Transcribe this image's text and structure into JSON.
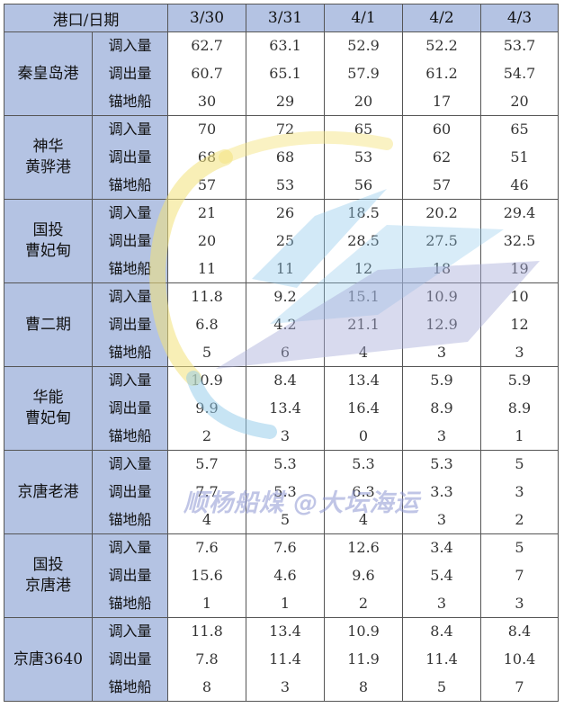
{
  "header": {
    "port_date_label": "港口/日期",
    "dates": [
      "3/30",
      "3/31",
      "4/1",
      "4/2",
      "4/3"
    ]
  },
  "metric_labels": [
    "调入量",
    "调出量",
    "锚地船"
  ],
  "ports": [
    {
      "name_lines": [
        "秦皇岛港"
      ],
      "rows": [
        [
          "62.7",
          "63.1",
          "52.9",
          "52.2",
          "53.7"
        ],
        [
          "60.7",
          "65.1",
          "57.9",
          "61.2",
          "54.7"
        ],
        [
          "30",
          "29",
          "20",
          "17",
          "20"
        ]
      ]
    },
    {
      "name_lines": [
        "神华",
        "黄骅港"
      ],
      "rows": [
        [
          "70",
          "72",
          "65",
          "60",
          "65"
        ],
        [
          "68",
          "68",
          "53",
          "62",
          "51"
        ],
        [
          "57",
          "53",
          "56",
          "57",
          "46"
        ]
      ]
    },
    {
      "name_lines": [
        "国投",
        "曹妃甸"
      ],
      "rows": [
        [
          "21",
          "26",
          "18.5",
          "20.2",
          "29.4"
        ],
        [
          "20",
          "25",
          "28.5",
          "27.5",
          "32.5"
        ],
        [
          "11",
          "11",
          "12",
          "18",
          "19"
        ]
      ]
    },
    {
      "name_lines": [
        "曹二期"
      ],
      "rows": [
        [
          "11.8",
          "9.2",
          "15.1",
          "10.9",
          "10"
        ],
        [
          "6.8",
          "4.2",
          "21.1",
          "12.9",
          "12"
        ],
        [
          "5",
          "6",
          "4",
          "3",
          "3"
        ]
      ]
    },
    {
      "name_lines": [
        "华能",
        "曹妃甸"
      ],
      "rows": [
        [
          "10.9",
          "8.4",
          "13.4",
          "5.9",
          "5.9"
        ],
        [
          "9.9",
          "13.4",
          "16.4",
          "8.9",
          "8.9"
        ],
        [
          "2",
          "3",
          "0",
          "3",
          "1"
        ]
      ]
    },
    {
      "name_lines": [
        "京唐老港"
      ],
      "rows": [
        [
          "5.7",
          "5.3",
          "5.3",
          "5.3",
          "5"
        ],
        [
          "7.7",
          "5.3",
          "6.3",
          "3.3",
          "3"
        ],
        [
          "4",
          "5",
          "4",
          "3",
          "2"
        ]
      ]
    },
    {
      "name_lines": [
        "国投",
        "京唐港"
      ],
      "rows": [
        [
          "7.6",
          "7.6",
          "12.6",
          "3.4",
          "5"
        ],
        [
          "15.6",
          "4.6",
          "9.6",
          "5.4",
          "7"
        ],
        [
          "1",
          "1",
          "2",
          "3",
          "3"
        ]
      ]
    },
    {
      "name_lines": [
        "京唐3640"
      ],
      "rows": [
        [
          "11.8",
          "13.4",
          "10.9",
          "8.4",
          "8.4"
        ],
        [
          "7.8",
          "11.4",
          "11.9",
          "11.4",
          "10.4"
        ],
        [
          "8",
          "3",
          "8",
          "5",
          "7"
        ]
      ]
    }
  ],
  "watermark": {
    "text": "顺杨船煤 @大坛海运",
    "colors": [
      "#f3e27a",
      "#8fc9ea",
      "#a9acd9"
    ]
  }
}
